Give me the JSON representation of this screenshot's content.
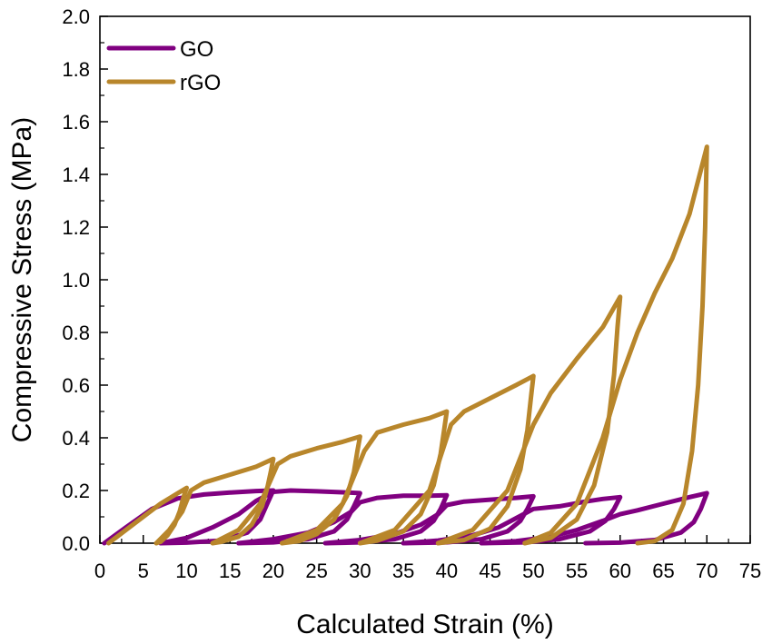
{
  "chart_data": {
    "type": "line",
    "title": "",
    "xlabel": "Calculated Strain (%)",
    "ylabel": "Compressive Stress (MPa)",
    "xlim": [
      0,
      75
    ],
    "ylim": [
      0,
      2.0
    ],
    "x_ticks": [
      "0",
      "5",
      "10",
      "15",
      "20",
      "25",
      "30",
      "35",
      "40",
      "45",
      "50",
      "55",
      "60",
      "65",
      "70",
      "75"
    ],
    "y_ticks": [
      "0.0",
      "0.2",
      "0.4",
      "0.6",
      "0.8",
      "1.0",
      "1.2",
      "1.4",
      "1.6",
      "1.8",
      "2.0"
    ],
    "grid": false,
    "legend_position": "top-left",
    "series": [
      {
        "name": "GO",
        "color": "#800080",
        "cycles": [
          {
            "loading": [
              [
                0.5,
                0
              ],
              [
                3,
                0.06
              ],
              [
                6,
                0.13
              ],
              [
                9,
                0.17
              ],
              [
                12,
                0.185
              ],
              [
                15,
                0.192
              ],
              [
                18,
                0.198
              ],
              [
                20,
                0.2
              ]
            ],
            "unloading": [
              [
                20,
                0.2
              ],
              [
                19.3,
                0.15
              ],
              [
                18.5,
                0.09
              ],
              [
                17,
                0.04
              ],
              [
                14,
                0.01
              ],
              [
                10,
                0.002
              ],
              [
                7,
                0
              ]
            ]
          },
          {
            "loading": [
              [
                7,
                0
              ],
              [
                10,
                0.02
              ],
              [
                13,
                0.06
              ],
              [
                16,
                0.11
              ],
              [
                18,
                0.16
              ],
              [
                20,
                0.195
              ],
              [
                22,
                0.2
              ],
              [
                25,
                0.197
              ],
              [
                28,
                0.193
              ],
              [
                30,
                0.19
              ]
            ],
            "unloading": [
              [
                30,
                0.19
              ],
              [
                29.3,
                0.14
              ],
              [
                28.5,
                0.09
              ],
              [
                27,
                0.045
              ],
              [
                24,
                0.015
              ],
              [
                20,
                0.003
              ],
              [
                16,
                0
              ]
            ]
          },
          {
            "loading": [
              [
                16,
                0
              ],
              [
                20,
                0.015
              ],
              [
                24,
                0.04
              ],
              [
                27,
                0.08
              ],
              [
                29,
                0.12
              ],
              [
                30,
                0.155
              ],
              [
                32,
                0.172
              ],
              [
                35,
                0.18
              ],
              [
                38,
                0.18
              ],
              [
                40,
                0.182
              ]
            ],
            "unloading": [
              [
                40,
                0.182
              ],
              [
                39.3,
                0.13
              ],
              [
                38.5,
                0.085
              ],
              [
                37,
                0.045
              ],
              [
                34,
                0.015
              ],
              [
                30,
                0.003
              ],
              [
                26,
                0
              ]
            ]
          },
          {
            "loading": [
              [
                26,
                0
              ],
              [
                30,
                0.012
              ],
              [
                34,
                0.035
              ],
              [
                37,
                0.07
              ],
              [
                39,
                0.11
              ],
              [
                40,
                0.145
              ],
              [
                42,
                0.158
              ],
              [
                45,
                0.165
              ],
              [
                48,
                0.172
              ],
              [
                50,
                0.178
              ]
            ],
            "unloading": [
              [
                50,
                0.178
              ],
              [
                49.3,
                0.13
              ],
              [
                48.5,
                0.085
              ],
              [
                47,
                0.045
              ],
              [
                44,
                0.015
              ],
              [
                40,
                0.003
              ],
              [
                35,
                0
              ]
            ]
          },
          {
            "loading": [
              [
                35,
                0
              ],
              [
                39,
                0.01
              ],
              [
                43,
                0.03
              ],
              [
                46,
                0.06
              ],
              [
                48,
                0.095
              ],
              [
                50,
                0.13
              ],
              [
                53,
                0.14
              ],
              [
                56,
                0.158
              ],
              [
                58,
                0.168
              ],
              [
                60,
                0.175
              ]
            ],
            "unloading": [
              [
                60,
                0.175
              ],
              [
                59.3,
                0.13
              ],
              [
                58.3,
                0.085
              ],
              [
                56.5,
                0.045
              ],
              [
                53,
                0.015
              ],
              [
                49,
                0.003
              ],
              [
                44,
                0
              ]
            ]
          },
          {
            "loading": [
              [
                44,
                0
              ],
              [
                48,
                0.008
              ],
              [
                52,
                0.025
              ],
              [
                55,
                0.05
              ],
              [
                58,
                0.085
              ],
              [
                60,
                0.11
              ],
              [
                62,
                0.125
              ],
              [
                65,
                0.15
              ],
              [
                68,
                0.175
              ],
              [
                70,
                0.19
              ]
            ],
            "unloading": [
              [
                70,
                0.19
              ],
              [
                69.3,
                0.13
              ],
              [
                68.5,
                0.08
              ],
              [
                67,
                0.04
              ],
              [
                64,
                0.012
              ],
              [
                60,
                0.002
              ],
              [
                56,
                0
              ]
            ]
          }
        ]
      },
      {
        "name": "rGO",
        "color": "#B8862B",
        "cycles": [
          {
            "loading": [
              [
                1,
                0
              ],
              [
                3,
                0.05
              ],
              [
                5,
                0.1
              ],
              [
                7,
                0.15
              ],
              [
                9,
                0.19
              ],
              [
                10,
                0.21
              ]
            ],
            "unloading": [
              [
                10,
                0.21
              ],
              [
                9.6,
                0.17
              ],
              [
                9.2,
                0.12
              ],
              [
                8.6,
                0.07
              ],
              [
                7.8,
                0.03
              ],
              [
                7,
                0.005
              ],
              [
                6.5,
                0
              ]
            ]
          },
          {
            "loading": [
              [
                6.5,
                0
              ],
              [
                8,
                0.05
              ],
              [
                9.5,
                0.12
              ],
              [
                10.5,
                0.2
              ],
              [
                12,
                0.23
              ],
              [
                15,
                0.26
              ],
              [
                18,
                0.29
              ],
              [
                20,
                0.32
              ]
            ],
            "unloading": [
              [
                20,
                0.32
              ],
              [
                19.7,
                0.27
              ],
              [
                19.3,
                0.21
              ],
              [
                18.7,
                0.14
              ],
              [
                17.5,
                0.07
              ],
              [
                16,
                0.025
              ],
              [
                14,
                0.005
              ],
              [
                13,
                0
              ]
            ]
          },
          {
            "loading": [
              [
                13,
                0
              ],
              [
                16,
                0.05
              ],
              [
                18.5,
                0.15
              ],
              [
                20.5,
                0.3
              ],
              [
                22,
                0.33
              ],
              [
                25,
                0.36
              ],
              [
                28,
                0.385
              ],
              [
                30,
                0.405
              ]
            ],
            "unloading": [
              [
                30,
                0.405
              ],
              [
                29.7,
                0.35
              ],
              [
                29.3,
                0.27
              ],
              [
                28.5,
                0.18
              ],
              [
                27,
                0.09
              ],
              [
                25,
                0.035
              ],
              [
                23,
                0.008
              ],
              [
                21,
                0
              ]
            ]
          },
          {
            "loading": [
              [
                21,
                0
              ],
              [
                25,
                0.05
              ],
              [
                28,
                0.15
              ],
              [
                30.5,
                0.35
              ],
              [
                32,
                0.42
              ],
              [
                35,
                0.45
              ],
              [
                38,
                0.475
              ],
              [
                40,
                0.5
              ]
            ],
            "unloading": [
              [
                40,
                0.5
              ],
              [
                39.7,
                0.43
              ],
              [
                39.3,
                0.34
              ],
              [
                38.5,
                0.22
              ],
              [
                37,
                0.11
              ],
              [
                35,
                0.045
              ],
              [
                32,
                0.01
              ],
              [
                30,
                0
              ]
            ]
          },
          {
            "loading": [
              [
                30,
                0
              ],
              [
                34,
                0.05
              ],
              [
                38,
                0.2
              ],
              [
                40.5,
                0.45
              ],
              [
                42,
                0.5
              ],
              [
                45,
                0.55
              ],
              [
                48,
                0.6
              ],
              [
                50,
                0.635
              ]
            ],
            "unloading": [
              [
                50,
                0.635
              ],
              [
                49.7,
                0.55
              ],
              [
                49.3,
                0.43
              ],
              [
                48.5,
                0.28
              ],
              [
                47,
                0.14
              ],
              [
                45,
                0.055
              ],
              [
                42,
                0.012
              ],
              [
                39,
                0
              ]
            ]
          },
          {
            "loading": [
              [
                39,
                0
              ],
              [
                43,
                0.05
              ],
              [
                47,
                0.2
              ],
              [
                50,
                0.45
              ],
              [
                52,
                0.57
              ],
              [
                55,
                0.7
              ],
              [
                58,
                0.82
              ],
              [
                60,
                0.935
              ]
            ],
            "unloading": [
              [
                60,
                0.935
              ],
              [
                59.7,
                0.82
              ],
              [
                59.3,
                0.64
              ],
              [
                58.5,
                0.42
              ],
              [
                57,
                0.22
              ],
              [
                55,
                0.09
              ],
              [
                52,
                0.02
              ],
              [
                49,
                0
              ]
            ]
          },
          {
            "loading": [
              [
                49,
                0
              ],
              [
                52,
                0.04
              ],
              [
                55,
                0.15
              ],
              [
                58,
                0.4
              ],
              [
                60,
                0.62
              ],
              [
                62,
                0.8
              ],
              [
                64,
                0.95
              ],
              [
                66,
                1.08
              ],
              [
                68,
                1.25
              ],
              [
                70,
                1.505
              ]
            ],
            "unloading": [
              [
                70,
                1.505
              ],
              [
                69.8,
                1.2
              ],
              [
                69.5,
                0.9
              ],
              [
                69,
                0.6
              ],
              [
                68.3,
                0.35
              ],
              [
                67.3,
                0.15
              ],
              [
                66,
                0.05
              ],
              [
                64,
                0.008
              ],
              [
                62,
                0
              ]
            ]
          }
        ]
      }
    ]
  }
}
